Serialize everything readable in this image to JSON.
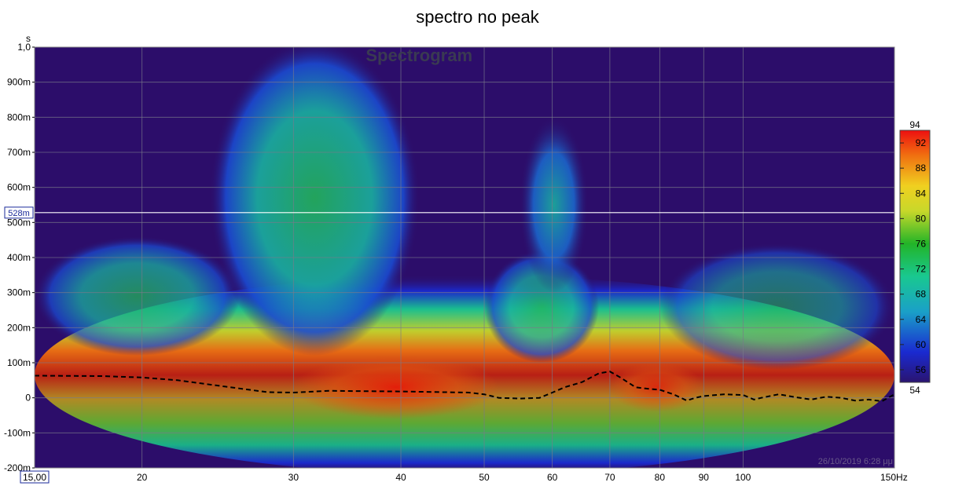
{
  "title": "spectro no peak",
  "chart_data": {
    "type": "heatmap",
    "title": "spectro no peak",
    "watermark": "Spectrogram",
    "timestamp": "26/10/2019 6:28 μμ",
    "x_scale": "log",
    "x_unit": "Hz",
    "xlim": [
      15,
      150
    ],
    "x_ticks": [
      {
        "value": 15,
        "label": "15,00",
        "boxed": true
      },
      {
        "value": 20,
        "label": "20"
      },
      {
        "value": 30,
        "label": "30"
      },
      {
        "value": 40,
        "label": "40"
      },
      {
        "value": 50,
        "label": "50"
      },
      {
        "value": 60,
        "label": "60"
      },
      {
        "value": 70,
        "label": "70"
      },
      {
        "value": 80,
        "label": "80"
      },
      {
        "value": 90,
        "label": "90"
      },
      {
        "value": 100,
        "label": "100"
      },
      {
        "value": 150,
        "label": "150Hz"
      }
    ],
    "y_unit": "s",
    "ylim": [
      -0.2,
      1.0
    ],
    "y_ticks": [
      {
        "value": 1.0,
        "label": "1,0"
      },
      {
        "value": 0.9,
        "label": "900m"
      },
      {
        "value": 0.8,
        "label": "800m"
      },
      {
        "value": 0.7,
        "label": "700m"
      },
      {
        "value": 0.6,
        "label": "600m"
      },
      {
        "value": 0.5,
        "label": "500m"
      },
      {
        "value": 0.4,
        "label": "400m"
      },
      {
        "value": 0.3,
        "label": "300m"
      },
      {
        "value": 0.2,
        "label": "200m"
      },
      {
        "value": 0.1,
        "label": "100m"
      },
      {
        "value": 0.0,
        "label": "0"
      },
      {
        "value": -0.1,
        "label": "-100m"
      },
      {
        "value": -0.2,
        "label": "-200m"
      }
    ],
    "cursor": {
      "value": 0.528,
      "label": "528m"
    },
    "colorbar": {
      "min": 54,
      "max": 94,
      "min_label": "54",
      "max_label": "94",
      "ticks": [
        56,
        60,
        64,
        68,
        72,
        76,
        80,
        84,
        88,
        92
      ]
    },
    "grid": true,
    "peak_energy_time_curve": {
      "x": [
        15,
        18,
        20,
        22,
        25,
        28,
        30,
        33,
        36,
        40,
        45,
        48,
        50,
        52,
        55,
        58,
        60,
        62,
        65,
        68,
        70,
        72,
        75,
        78,
        80,
        83,
        86,
        88,
        90,
        95,
        100,
        103,
        105,
        110,
        115,
        120,
        125,
        130,
        135,
        140,
        145,
        150
      ],
      "y": [
        0.063,
        0.062,
        0.058,
        0.05,
        0.032,
        0.016,
        0.015,
        0.02,
        0.019,
        0.018,
        0.016,
        0.015,
        0.01,
        0.0,
        -0.002,
        0.0,
        0.015,
        0.03,
        0.045,
        0.07,
        0.075,
        0.058,
        0.03,
        0.025,
        0.023,
        0.01,
        -0.008,
        0.0,
        0.005,
        0.01,
        0.008,
        -0.005,
        0.0,
        0.01,
        0.002,
        -0.005,
        0.003,
        0.0,
        -0.008,
        -0.005,
        -0.01,
        0.01
      ]
    }
  }
}
